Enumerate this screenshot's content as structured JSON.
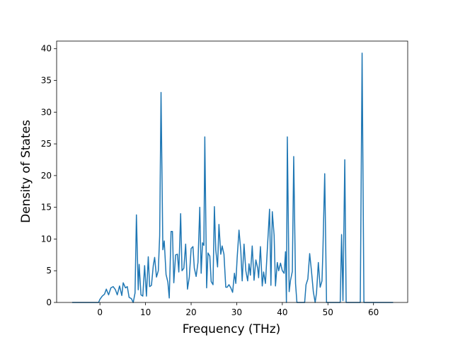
{
  "chart_data": {
    "type": "line",
    "xlabel": "Frequency (THz)",
    "ylabel": "Density of States",
    "x": [
      -6.1,
      -0.3,
      0,
      0.5,
      1.0,
      1.4,
      1.9,
      2.4,
      2.9,
      3.4,
      3.8,
      4.3,
      4.8,
      5.1,
      5.6,
      6.0,
      6.4,
      6.9,
      7.3,
      7.7,
      8.0,
      8.4,
      8.6,
      9.0,
      9.4,
      9.8,
      10.2,
      10.6,
      10.9,
      11.3,
      11.7,
      12.0,
      12.4,
      12.8,
      13.1,
      13.4,
      13.8,
      14.1,
      14.5,
      14.9,
      15.2,
      15.6,
      15.9,
      16.2,
      16.6,
      17.0,
      17.3,
      17.7,
      18.0,
      18.4,
      18.8,
      19.2,
      19.6,
      20.0,
      20.4,
      20.7,
      21.1,
      21.5,
      21.9,
      22.2,
      22.5,
      22.8,
      23.0,
      23.4,
      23.7,
      24.1,
      24.4,
      24.8,
      25.1,
      25.4,
      25.8,
      26.1,
      26.5,
      26.8,
      27.2,
      27.6,
      27.9,
      28.3,
      28.7,
      29.1,
      29.5,
      29.8,
      30.1,
      30.5,
      30.9,
      31.2,
      31.6,
      32.0,
      32.4,
      32.7,
      33.0,
      33.4,
      33.8,
      34.2,
      34.6,
      34.8,
      35.2,
      35.6,
      35.9,
      36.3,
      37.2,
      37.5,
      37.8,
      38.2,
      38.5,
      38.9,
      39.2,
      39.6,
      40.0,
      40.4,
      40.7,
      40.9,
      41.1,
      41.5,
      41.8,
      42.2,
      42.5,
      42.9,
      43.2,
      44.9,
      45.2,
      45.6,
      46.0,
      46.4,
      46.8,
      47.2,
      47.5,
      47.9,
      48.3,
      48.7,
      48.9,
      49.3,
      49.7,
      52.7,
      53.0,
      53.3,
      53.7,
      54.0,
      57.1,
      57.5,
      57.9,
      64.3
    ],
    "series": [
      {
        "color": "#1f77b4",
        "values": [
          0,
          0,
          0.5,
          1.0,
          1.3,
          2.1,
          1.2,
          2.3,
          2.5,
          2.0,
          1.2,
          2.6,
          1.1,
          3.1,
          2.3,
          2.5,
          0.8,
          0.6,
          0,
          1.5,
          13.8,
          2.0,
          6.0,
          1.2,
          1.0,
          5.8,
          1.0,
          7.2,
          2.5,
          2.7,
          5.8,
          7.1,
          4.0,
          5.0,
          10.5,
          33.1,
          8.3,
          9.7,
          4.4,
          3.2,
          0.7,
          11.2,
          11.2,
          3.1,
          7.5,
          7.6,
          4.8,
          14.0,
          5.0,
          5.4,
          9.2,
          2.1,
          4.0,
          8.5,
          8.8,
          5.4,
          4.1,
          6.3,
          15.0,
          4.6,
          9.4,
          9.0,
          26.1,
          2.3,
          7.8,
          7.3,
          3.3,
          2.8,
          15.1,
          8.3,
          5.6,
          12.3,
          7.6,
          8.9,
          7.6,
          2.4,
          2.4,
          2.8,
          2.3,
          1.6,
          4.6,
          3.0,
          7.1,
          11.4,
          8.1,
          3.4,
          9.2,
          5.0,
          3.4,
          6.1,
          4.3,
          8.9,
          3.5,
          6.7,
          5.4,
          3.9,
          8.8,
          2.6,
          4.8,
          3.0,
          14.7,
          2.7,
          14.3,
          10.6,
          2.6,
          6.3,
          5.0,
          6.2,
          5.0,
          4.6,
          8.0,
          0,
          26.1,
          1.7,
          3.5,
          4.9,
          23.0,
          3.0,
          0,
          0,
          2.8,
          3.7,
          7.7,
          4.9,
          1.7,
          0,
          1.5,
          6.3,
          2.4,
          3.4,
          8.0,
          20.3,
          0,
          0,
          10.7,
          0.3,
          22.5,
          0,
          0,
          39.3,
          0,
          0
        ]
      }
    ],
    "xlim": [
      -9.5,
      67.5
    ],
    "ylim": [
      0,
      41.2
    ],
    "xticks": [
      0,
      10,
      20,
      30,
      40,
      50,
      60
    ],
    "yticks": [
      0,
      5,
      10,
      15,
      20,
      25,
      30,
      35,
      40
    ]
  }
}
